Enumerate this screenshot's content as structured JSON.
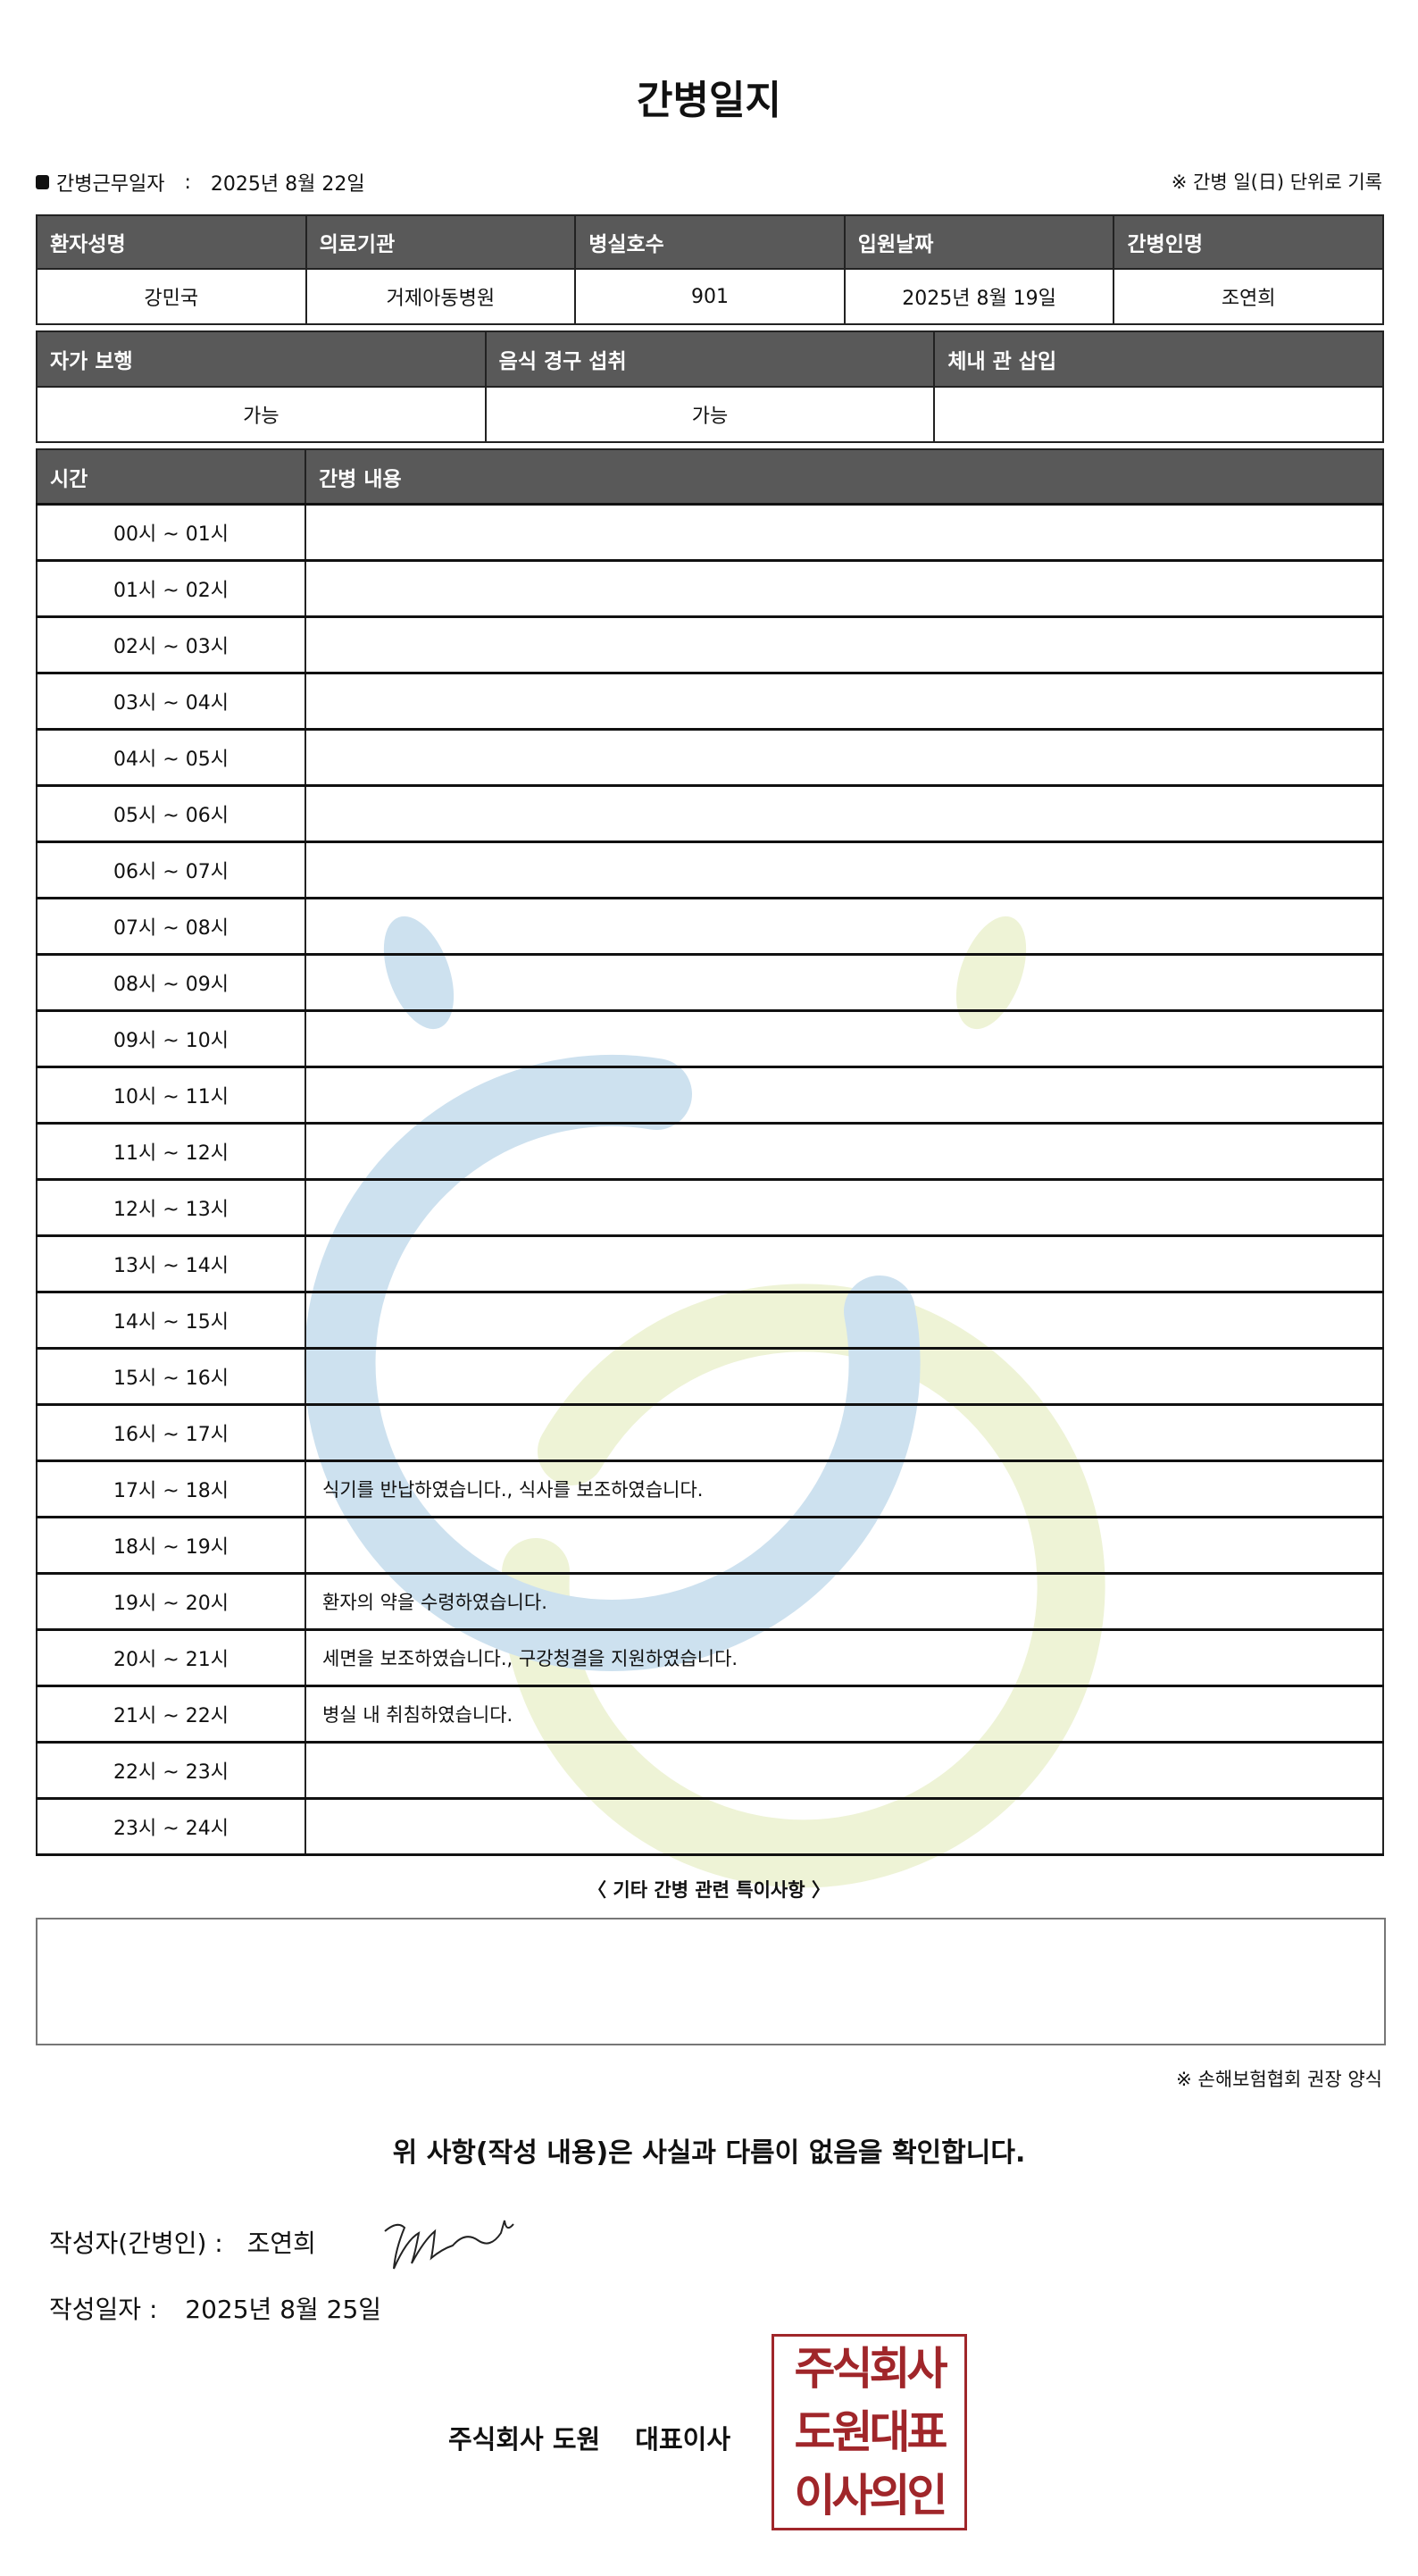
{
  "title": "간병일지",
  "info": {
    "work_date_label": "간병근무일자",
    "separator": ":",
    "work_date": "2025년 8월 22일",
    "note": "※ 간병 일(日) 단위로 기록"
  },
  "patient_table": {
    "headers": [
      "환자성명",
      "의료기관",
      "병실호수",
      "입원날짜",
      "간병인명"
    ],
    "values": [
      "강민국",
      "거제아동병원",
      "901",
      "2025년 8월 19일",
      "조연희"
    ]
  },
  "status_table": {
    "headers": [
      "자가 보행",
      "음식 경구 섭취",
      "체내 관 삽입"
    ],
    "values": [
      "가능",
      "가능",
      ""
    ]
  },
  "log_table": {
    "headers": [
      "시간",
      "간병 내용"
    ],
    "rows": [
      {
        "time": "00시 ~ 01시",
        "content": ""
      },
      {
        "time": "01시 ~ 02시",
        "content": ""
      },
      {
        "time": "02시 ~ 03시",
        "content": ""
      },
      {
        "time": "03시 ~ 04시",
        "content": ""
      },
      {
        "time": "04시 ~ 05시",
        "content": ""
      },
      {
        "time": "05시 ~ 06시",
        "content": ""
      },
      {
        "time": "06시 ~ 07시",
        "content": ""
      },
      {
        "time": "07시 ~ 08시",
        "content": ""
      },
      {
        "time": "08시 ~ 09시",
        "content": ""
      },
      {
        "time": "09시 ~ 10시",
        "content": ""
      },
      {
        "time": "10시 ~ 11시",
        "content": ""
      },
      {
        "time": "11시 ~ 12시",
        "content": ""
      },
      {
        "time": "12시 ~ 13시",
        "content": ""
      },
      {
        "time": "13시 ~ 14시",
        "content": ""
      },
      {
        "time": "14시 ~ 15시",
        "content": ""
      },
      {
        "time": "15시 ~ 16시",
        "content": ""
      },
      {
        "time": "16시 ~ 17시",
        "content": ""
      },
      {
        "time": "17시 ~ 18시",
        "content": "식기를 반납하였습니다., 식사를 보조하였습니다."
      },
      {
        "time": "18시 ~ 19시",
        "content": ""
      },
      {
        "time": "19시 ~ 20시",
        "content": "환자의 약을 수령하였습니다."
      },
      {
        "time": "20시 ~ 21시",
        "content": "세면을 보조하였습니다., 구강청결을 지원하였습니다."
      },
      {
        "time": "21시 ~ 22시",
        "content": "병실 내 취침하였습니다."
      },
      {
        "time": "22시 ~ 23시",
        "content": ""
      },
      {
        "time": "23시 ~ 24시",
        "content": ""
      }
    ]
  },
  "special_notes": {
    "label": "〈 기타 간병 관련 특이사항 〉",
    "value": ""
  },
  "form_note": "※ 손해보험협회 권장 양식",
  "confirmation": "위 사항(작성 내용)은 사실과 다름이 없음을 확인합니다.",
  "writer": {
    "label": "작성자(간병인) :",
    "name": "조연희"
  },
  "written_date": {
    "label": "작성일자 :",
    "value": "2025년 8월 25일"
  },
  "company": "주식회사 도원　 대표이사",
  "stamp": {
    "lines": [
      "주식회사",
      "도원대표",
      "이사의인"
    ],
    "color": "#a0262a"
  },
  "colors": {
    "header_bg": "#595959",
    "watermark_blue": "#cde1ef",
    "watermark_yellow": "#eef3d6"
  }
}
